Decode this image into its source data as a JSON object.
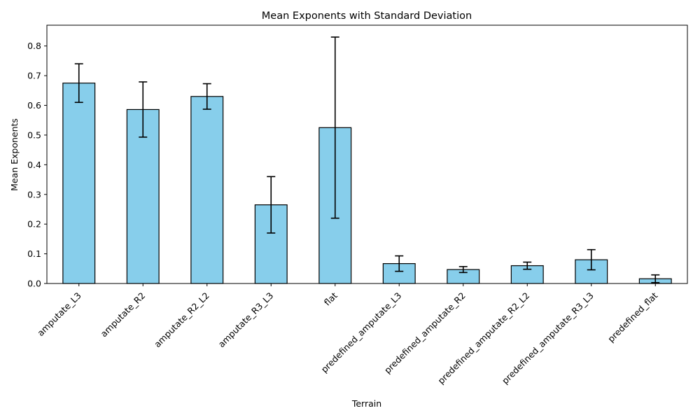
{
  "chart_data": {
    "type": "bar",
    "title": "Mean Exponents with Standard Deviation",
    "xlabel": "Terrain",
    "ylabel": "Mean Exponents",
    "ylim": [
      0,
      0.87
    ],
    "yticks": [
      0.0,
      0.1,
      0.2,
      0.3,
      0.4,
      0.5,
      0.6,
      0.7,
      0.8
    ],
    "grid": false,
    "categories": [
      "amputate_L3",
      "amputate_R2",
      "amputate_R2_L2",
      "amputate_R3_L3",
      "flat",
      "predefined_amputate_L3",
      "predefined_amputate_R2",
      "predefined_amputate_R2_L2",
      "predefined_amputate_R3_L3",
      "predefined_flat"
    ],
    "values": [
      0.675,
      0.586,
      0.63,
      0.265,
      0.525,
      0.067,
      0.047,
      0.06,
      0.08,
      0.016
    ],
    "errors": [
      0.065,
      0.093,
      0.043,
      0.095,
      0.305,
      0.026,
      0.01,
      0.012,
      0.034,
      0.013
    ],
    "bar_color": "#87ceeb",
    "edge_color": "#000000"
  }
}
